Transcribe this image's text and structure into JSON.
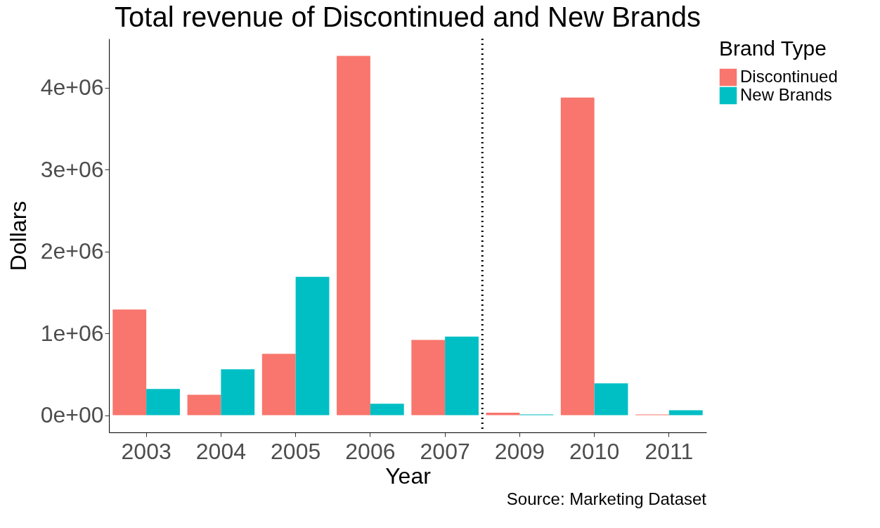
{
  "chart_data": {
    "type": "bar",
    "title": "Total revenue of Discontinued and New Brands",
    "xlabel": "Year",
    "ylabel": "Dollars",
    "legend_title": "Brand Type",
    "categories": [
      "2003",
      "2004",
      "2005",
      "2006",
      "2007",
      "2009",
      "2010",
      "2011"
    ],
    "series": [
      {
        "name": "Discontinued",
        "color": "#f8766d",
        "values": [
          1290000,
          250000,
          750000,
          4390000,
          920000,
          30000,
          3880000,
          10000
        ]
      },
      {
        "name": "New Brands",
        "color": "#00bfc4",
        "values": [
          320000,
          560000,
          1690000,
          140000,
          960000,
          10000,
          390000,
          60000
        ]
      }
    ],
    "ylim": [
      -210000,
      4600000
    ],
    "yticks": [
      {
        "value": 0,
        "label": "0e+00"
      },
      {
        "value": 1000000,
        "label": "1e+06"
      },
      {
        "value": 2000000,
        "label": "2e+06"
      },
      {
        "value": 3000000,
        "label": "3e+06"
      },
      {
        "value": 4000000,
        "label": "4e+06"
      }
    ],
    "grid": false,
    "legend": "right",
    "annotations": [
      "Source: Marketing Dataset"
    ]
  }
}
